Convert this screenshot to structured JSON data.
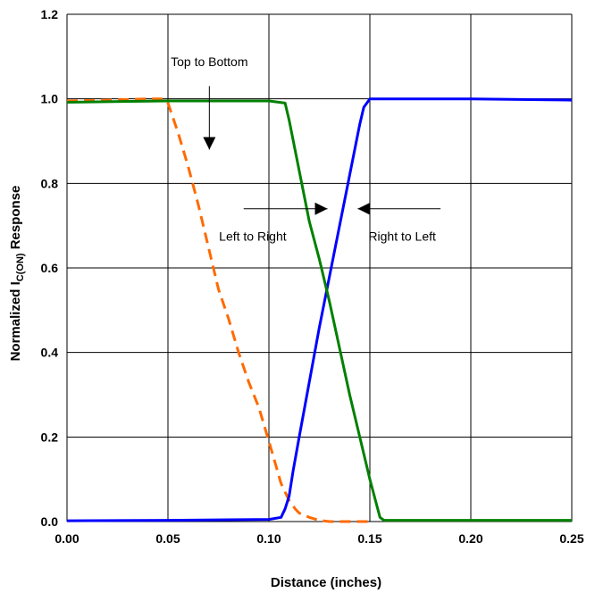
{
  "chart_data": {
    "type": "line",
    "xlabel": "Distance (inches)",
    "ylabel_main": "Normalized I",
    "ylabel_sub": "C(ON)",
    "ylabel_tail": " Response",
    "xlim": [
      0,
      0.25
    ],
    "ylim": [
      0,
      1.2
    ],
    "xticks": [
      0,
      0.05,
      0.1,
      0.15,
      0.2,
      0.25
    ],
    "xtick_labels": [
      "0.00",
      "0.05",
      "0.10",
      "0.15",
      "0.20",
      "0.25"
    ],
    "yticks": [
      0,
      0.2,
      0.4,
      0.6,
      0.8,
      1.0,
      1.2
    ],
    "ytick_labels": [
      "0.0",
      "0.2",
      "0.4",
      "0.6",
      "0.8",
      "1.0",
      "1.2"
    ],
    "grid": true,
    "series": [
      {
        "id": "top-to-bottom",
        "color": "#ff6a00",
        "dash": true,
        "x": [
          0,
          0.02,
          0.04,
          0.048,
          0.05,
          0.055,
          0.06,
          0.065,
          0.07,
          0.075,
          0.08,
          0.085,
          0.09,
          0.095,
          0.1,
          0.103,
          0.106,
          0.11,
          0.113,
          0.115,
          0.12,
          0.125,
          0.13,
          0.14,
          0.15
        ],
        "y": [
          0.995,
          0.997,
          1.0,
          1.0,
          0.99,
          0.92,
          0.84,
          0.75,
          0.65,
          0.55,
          0.48,
          0.4,
          0.33,
          0.27,
          0.19,
          0.14,
          0.09,
          0.05,
          0.03,
          0.02,
          0.01,
          0.003,
          0.0,
          0.0,
          0.0
        ]
      },
      {
        "id": "left-to-right",
        "color": "#0000ff",
        "dash": false,
        "x": [
          0,
          0.05,
          0.1,
          0.106,
          0.108,
          0.11,
          0.112,
          0.115,
          0.12,
          0.125,
          0.13,
          0.135,
          0.14,
          0.145,
          0.147,
          0.15,
          0.155,
          0.2,
          0.25
        ],
        "y": [
          0.002,
          0.003,
          0.005,
          0.01,
          0.03,
          0.06,
          0.12,
          0.2,
          0.33,
          0.46,
          0.58,
          0.7,
          0.82,
          0.94,
          0.98,
          1.0,
          1.0,
          1.0,
          0.997
        ]
      },
      {
        "id": "right-to-left",
        "color": "#008000",
        "dash": false,
        "x": [
          0,
          0.05,
          0.1,
          0.105,
          0.108,
          0.11,
          0.115,
          0.12,
          0.125,
          0.13,
          0.135,
          0.14,
          0.145,
          0.15,
          0.155,
          0.157,
          0.2,
          0.25
        ],
        "y": [
          0.992,
          0.995,
          0.995,
          0.992,
          0.99,
          0.95,
          0.83,
          0.71,
          0.62,
          0.52,
          0.41,
          0.3,
          0.2,
          0.1,
          0.01,
          0.003,
          0.003,
          0.003
        ]
      }
    ],
    "annotations": [
      {
        "text": "Top to Bottom",
        "pos": [
          0.0705,
          1.077
        ],
        "anchor": "middle",
        "arrow": [
          [
            0.0705,
            1.03
          ],
          [
            0.0705,
            0.88
          ]
        ]
      },
      {
        "text": "Left to Right",
        "pos": [
          0.092,
          0.664
        ],
        "anchor": "middle",
        "arrow": [
          [
            0.0875,
            0.74
          ],
          [
            0.129,
            0.74
          ]
        ]
      },
      {
        "text": "Right to Left",
        "pos": [
          0.166,
          0.664
        ],
        "anchor": "middle",
        "arrow": [
          [
            0.185,
            0.74
          ],
          [
            0.144,
            0.74
          ]
        ]
      }
    ]
  }
}
